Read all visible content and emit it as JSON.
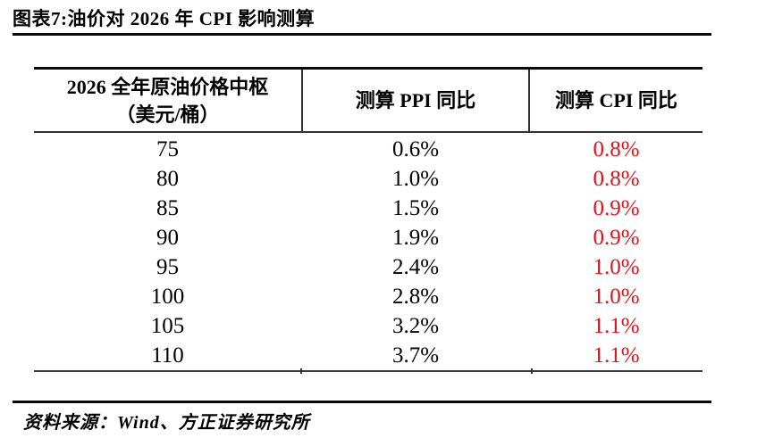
{
  "page": {
    "title": "图表7:油价对 2026 年 CPI 影响测算",
    "source": "资料来源：Wind、方正证券研究所"
  },
  "colors": {
    "cpi_value_red": "#e01119",
    "text_black": "#000000",
    "rule_black": "#0a0a0a",
    "inner_rule_gray": "#333333"
  },
  "table": {
    "col1_header_line1": "2026 全年原油价格中枢",
    "col1_header_line2": "（美元/桶）",
    "col2_header": "测算 PPI 同比",
    "col3_header": "测算 CPI 同比",
    "rows": [
      {
        "price": "75",
        "ppi": "0.6%",
        "cpi": "0.8%"
      },
      {
        "price": "80",
        "ppi": "1.0%",
        "cpi": "0.8%"
      },
      {
        "price": "85",
        "ppi": "1.5%",
        "cpi": "0.9%"
      },
      {
        "price": "90",
        "ppi": "1.9%",
        "cpi": "0.9%"
      },
      {
        "price": "95",
        "ppi": "2.4%",
        "cpi": "1.0%"
      },
      {
        "price": "100",
        "ppi": "2.8%",
        "cpi": "1.0%"
      },
      {
        "price": "105",
        "ppi": "3.2%",
        "cpi": "1.1%"
      },
      {
        "price": "110",
        "ppi": "3.7%",
        "cpi": "1.1%"
      }
    ]
  },
  "chart_data": {
    "type": "table",
    "title": "图表7:油价对 2026 年 CPI 影响测算",
    "columns": [
      "2026 全年原油价格中枢（美元/桶）",
      "测算 PPI 同比",
      "测算 CPI 同比"
    ],
    "oil_price_usd_per_barrel": [
      75,
      80,
      85,
      90,
      95,
      100,
      105,
      110
    ],
    "ppi_yoy_pct": [
      0.6,
      1.0,
      1.5,
      1.9,
      2.4,
      2.8,
      3.2,
      3.7
    ],
    "cpi_yoy_pct": [
      0.8,
      0.8,
      0.9,
      0.9,
      1.0,
      1.0,
      1.1,
      1.1
    ],
    "source": "资料来源：Wind、方正证券研究所"
  }
}
